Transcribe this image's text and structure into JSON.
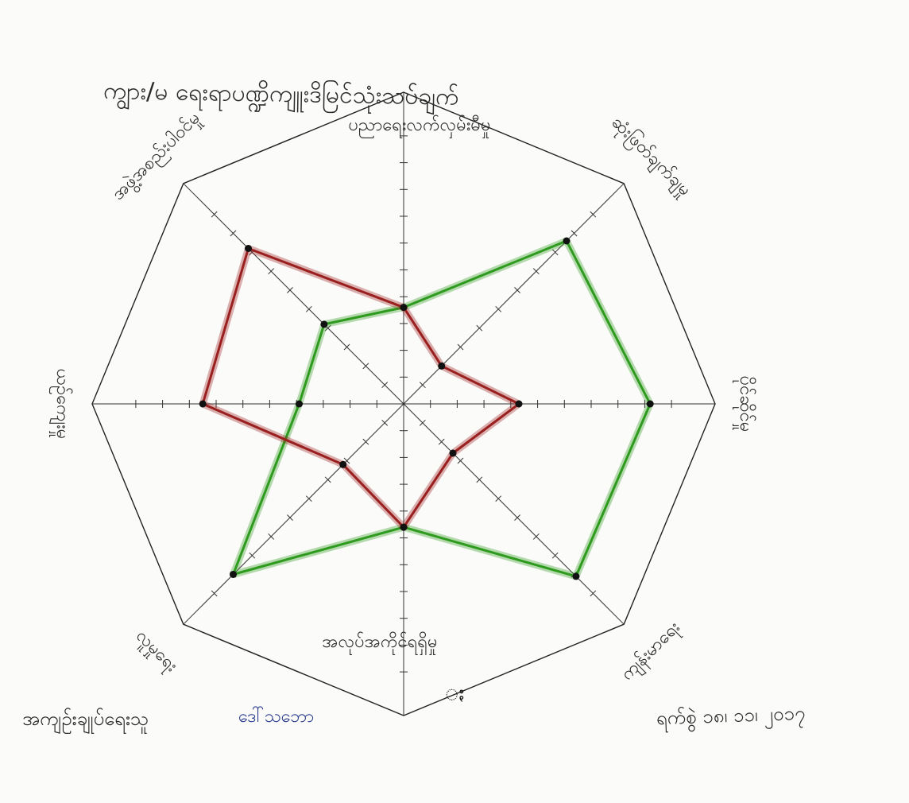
{
  "title": "ကျွား/မ ရေးရာပဏ္ဍိကျူးဒိမြင်သုံးသပ်ချက်",
  "chart_data": {
    "type": "radar",
    "axes": [
      "ပညာရေးလက်လှမ်းမီမှု",
      "ဆုံးဖြတ်ချက်ချမှု",
      "ပိုင်ဆိုင်မှု",
      "ကျန်းမာရေး",
      "အလုပ်အကိုင်ရရှိမှု",
      "လူမှုရေး",
      "ယဉ်ကျေးမှု",
      "အဖွဲ့အစည်းပါဝင်မှု"
    ],
    "scale_max": 10,
    "tick_count": 10,
    "series": [
      {
        "color": "#2e9a1e",
        "values": [
          3.6,
          8.6,
          9.2,
          9.1,
          4.6,
          9.0,
          3.9,
          4.2
        ]
      },
      {
        "color": "#9a1f1f",
        "values": [
          3.6,
          2.0,
          4.3,
          2.6,
          4.6,
          3.2,
          7.5,
          8.2
        ]
      }
    ]
  },
  "footer": {
    "signature_label": "အကျဉ်းချုပ်ရေးသူ",
    "signature_value": "ဒေါ်သဘော",
    "date_label": "ရက်စွဲ ၁၈၊ ၁၁၊ ၂၀၁၇",
    "footnote": "ႏ"
  }
}
